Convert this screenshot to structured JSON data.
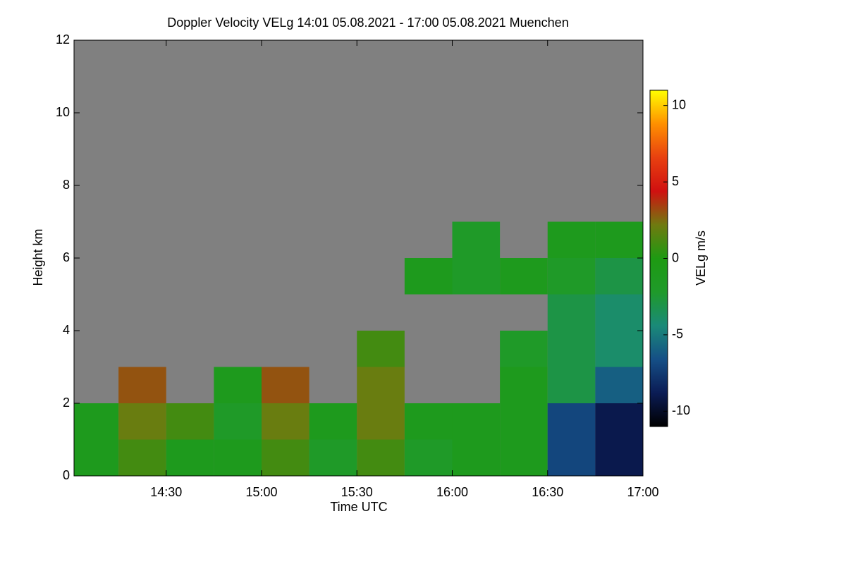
{
  "chart_data": {
    "type": "heatmap",
    "title": "Doppler Velocity VELg   14:01 05.08.2021 - 17:00 05.08.2021 Muenchen",
    "x_label": "Time UTC",
    "y_label": "Height km",
    "colorbar_label": "VELg m/s",
    "x": [
      14.125,
      14.375,
      14.625,
      14.875,
      15.125,
      15.375,
      15.625,
      15.875,
      16.125,
      16.375,
      16.625,
      16.875
    ],
    "y": [
      0.5,
      1.5,
      2.5,
      3.5,
      4.5,
      5.5,
      6.5,
      7.5,
      8.5,
      9.5,
      10.5,
      11.5
    ],
    "z": [
      [
        -1,
        1,
        -1,
        -1,
        1,
        -2,
        1,
        -2,
        -1,
        -1,
        -7,
        -9
      ],
      [
        -1,
        2,
        1,
        -2,
        2,
        -1,
        2,
        -1,
        -1,
        -1,
        -7,
        -9
      ],
      [
        null,
        3,
        null,
        -1,
        3,
        null,
        2,
        null,
        null,
        -1,
        -3,
        -6
      ],
      [
        null,
        null,
        null,
        null,
        null,
        null,
        1,
        null,
        null,
        -2,
        -3,
        -4
      ],
      [
        null,
        null,
        null,
        null,
        null,
        null,
        null,
        null,
        null,
        null,
        -3,
        -4
      ],
      [
        null,
        null,
        null,
        null,
        null,
        null,
        null,
        -1,
        -2,
        -1,
        -2,
        -3
      ],
      [
        null,
        null,
        null,
        null,
        null,
        null,
        null,
        null,
        -2,
        null,
        -1,
        -1
      ],
      [
        null,
        null,
        null,
        null,
        null,
        null,
        null,
        null,
        null,
        null,
        null,
        null
      ],
      [
        null,
        null,
        null,
        null,
        null,
        null,
        null,
        null,
        null,
        null,
        null,
        null
      ],
      [
        null,
        null,
        null,
        null,
        null,
        null,
        null,
        null,
        null,
        null,
        null,
        null
      ],
      [
        null,
        null,
        null,
        null,
        null,
        null,
        null,
        null,
        null,
        null,
        null,
        null
      ],
      [
        null,
        null,
        null,
        null,
        null,
        null,
        null,
        null,
        null,
        null,
        null,
        null
      ]
    ],
    "xlim": [
      14.01667,
      17.0
    ],
    "xticks": [
      {
        "value": 14.5,
        "label": "14:30"
      },
      {
        "value": 15.0,
        "label": "15:00"
      },
      {
        "value": 15.5,
        "label": "15:30"
      },
      {
        "value": 16.0,
        "label": "16:00"
      },
      {
        "value": 16.5,
        "label": "16:30"
      },
      {
        "value": 17.0,
        "label": "17:00"
      }
    ],
    "ylim": [
      0,
      12
    ],
    "yticks": [
      0,
      2,
      4,
      6,
      8,
      10,
      12
    ],
    "clim": [
      -11,
      11
    ],
    "cticks": [
      -10,
      -5,
      0,
      5,
      10
    ],
    "colormap": [
      "#000000",
      "#0b1c55",
      "#154f86",
      "#1a8a78",
      "#1f9a2a",
      "#1e9a12",
      "#707a10",
      "#d01010",
      "#e84010",
      "#ff9000",
      "#ffff00"
    ],
    "missing_color": "#808080"
  }
}
